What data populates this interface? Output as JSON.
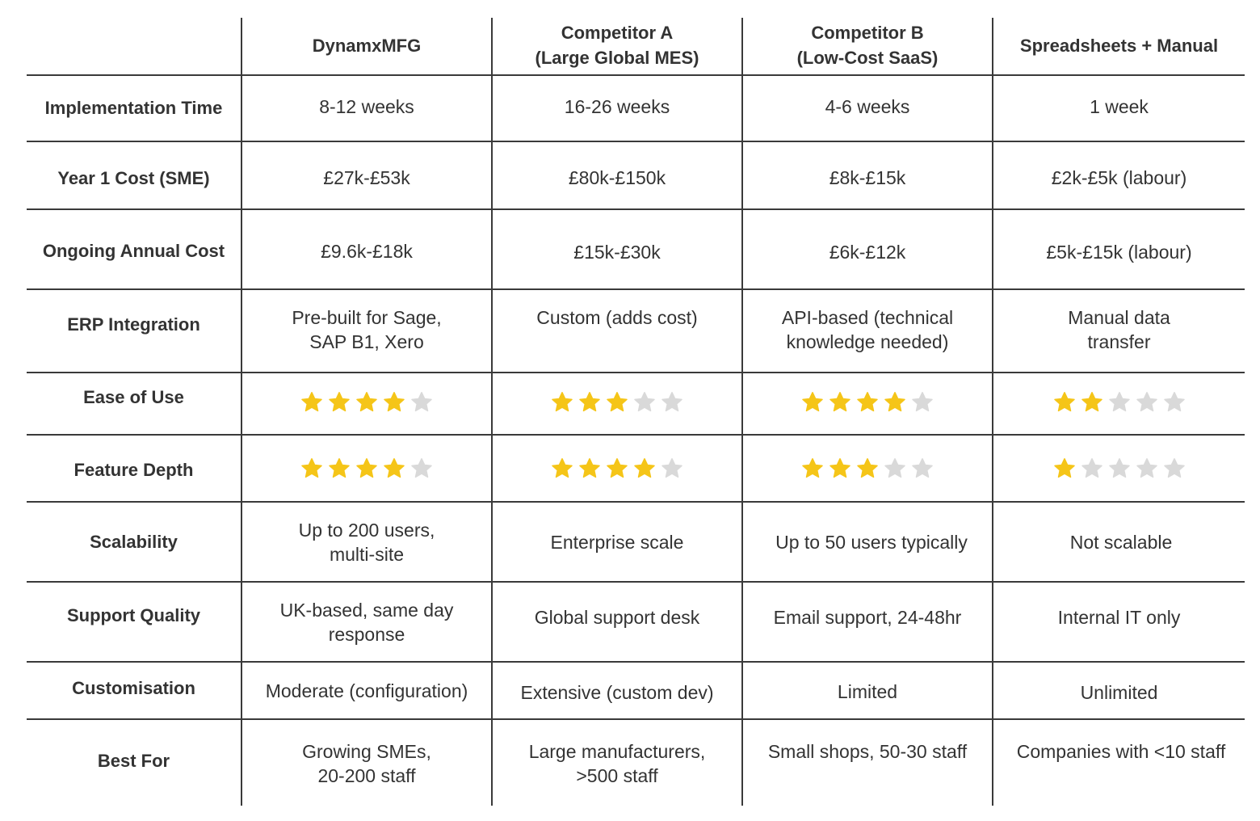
{
  "columns": [
    "DynamxMFG",
    "Competitor A\n(Large Global MES)",
    "Competitor B\n(Low-Cost SaaS)",
    "Spreadsheets + Manual"
  ],
  "rows": [
    {
      "label": "Implementation Time",
      "type": "text",
      "cells": [
        "8-12 weeks",
        "16-26 weeks",
        "4-6 weeks",
        "1 week"
      ]
    },
    {
      "label": "Year 1 Cost (SME)",
      "type": "text",
      "cells": [
        "£27k-£53k",
        "£80k-£150k",
        "£8k-£15k",
        "£2k-£5k (labour)"
      ]
    },
    {
      "label": "Ongoing Annual Cost",
      "type": "text",
      "cells": [
        "£9.6k-£18k",
        "£15k-£30k",
        "£6k-£12k",
        "£5k-£15k (labour)"
      ]
    },
    {
      "label": "ERP Integration",
      "type": "text",
      "cells": [
        "Pre-built for Sage,\nSAP B1, Xero",
        "Custom (adds cost)",
        "API-based (technical\nknowledge needed)",
        "Manual data\ntransfer"
      ]
    },
    {
      "label": "Ease of Use",
      "type": "rating",
      "ratings": [
        4,
        3,
        4,
        2
      ],
      "max_rating": 5
    },
    {
      "label": "Feature Depth",
      "type": "rating",
      "ratings": [
        4,
        4,
        3,
        1
      ],
      "max_rating": 5
    },
    {
      "label": "Scalability",
      "type": "text",
      "cells": [
        "Up to 200 users,\nmulti-site",
        "Enterprise scale",
        "Up to 50 users typically",
        "Not scalable"
      ]
    },
    {
      "label": "Support Quality",
      "type": "text",
      "cells": [
        "UK-based, same day\nresponse",
        "Global support desk",
        "Email support, 24-48hr",
        "Internal IT only"
      ]
    },
    {
      "label": "Customisation",
      "type": "text",
      "cells": [
        "Moderate (configuration)",
        "Extensive (custom dev)",
        "Limited",
        "Unlimited"
      ]
    },
    {
      "label": "Best For",
      "type": "text",
      "cells": [
        "Growing SMEs,\n20-200 staff",
        "Large manufacturers,\n>500 staff",
        "Small shops, 50-30 staff",
        "Companies with <10 staff"
      ]
    }
  ],
  "colors": {
    "star_filled": "#F5C518",
    "star_empty": "#D9D9D9",
    "text": "#333333",
    "rule": "#3A3A3A"
  }
}
